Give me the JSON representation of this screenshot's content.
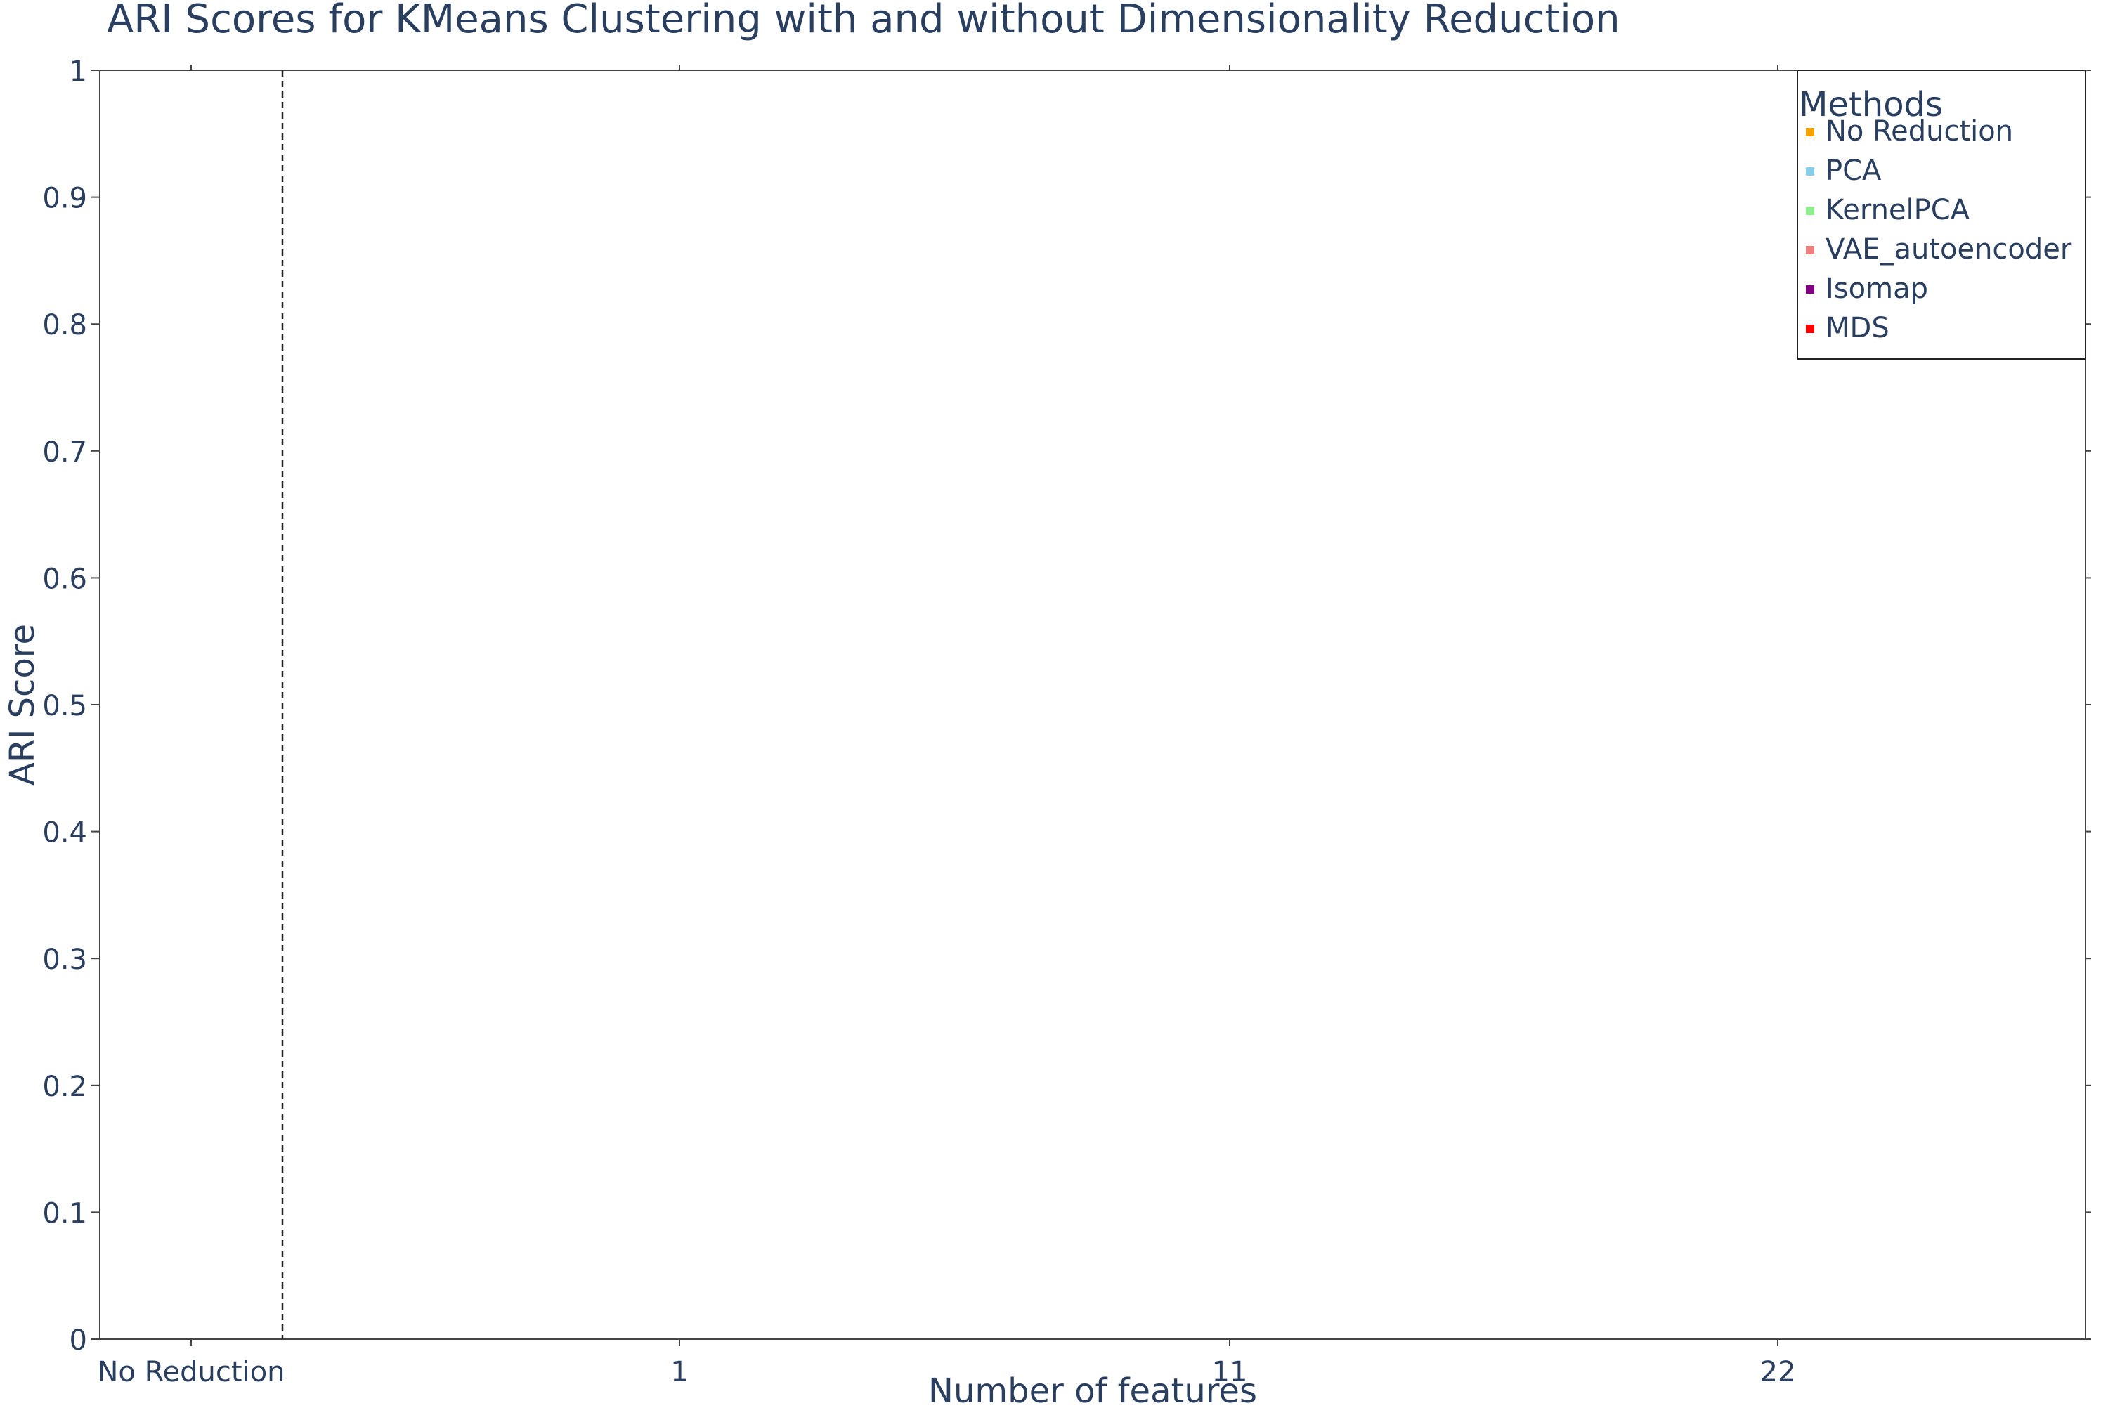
{
  "chart_data": {
    "type": "scatter",
    "title": "ARI Scores for KMeans Clustering with and without Dimensionality Reduction",
    "xlabel": "Number of features",
    "ylabel": "ARI Score",
    "ylim": [
      0,
      1
    ],
    "y_ticks": [
      "0",
      "0.1",
      "0.2",
      "0.3",
      "0.4",
      "0.5",
      "0.6",
      "0.7",
      "0.8",
      "0.9",
      "1"
    ],
    "x_categories": [
      "No Reduction",
      "1",
      "11",
      "22"
    ],
    "separator_line": "dashed vertical line between No Reduction and 1",
    "grid": false,
    "legend": {
      "title": "Methods",
      "placement": "top-right",
      "entries": [
        {
          "name": "No Reduction",
          "color": "#f5a300"
        },
        {
          "name": "PCA",
          "color": "#87ceeb"
        },
        {
          "name": "KernelPCA",
          "color": "#90ee90"
        },
        {
          "name": "VAE_autoencoder",
          "color": "#f08080"
        },
        {
          "name": "Isomap",
          "color": "#800080"
        },
        {
          "name": "MDS",
          "color": "#ff0000"
        }
      ]
    },
    "series": [
      {
        "name": "No Reduction",
        "x": [],
        "y": []
      },
      {
        "name": "PCA",
        "x": [],
        "y": []
      },
      {
        "name": "KernelPCA",
        "x": [],
        "y": []
      },
      {
        "name": "VAE_autoencoder",
        "x": [],
        "y": []
      },
      {
        "name": "Isomap",
        "x": [],
        "y": []
      },
      {
        "name": "MDS",
        "x": [],
        "y": []
      }
    ]
  }
}
